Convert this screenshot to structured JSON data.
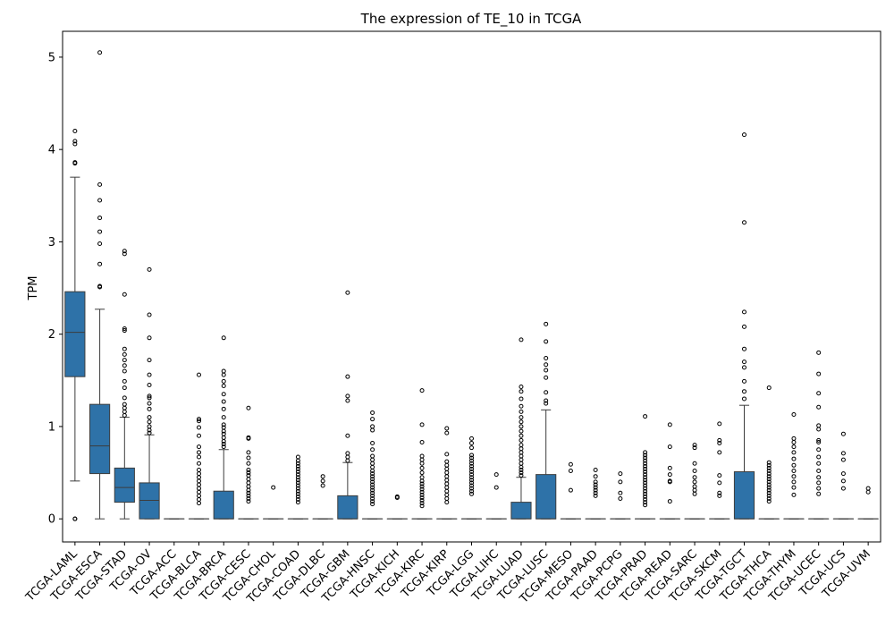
{
  "chart_data": {
    "type": "box",
    "title": "The expression of TE_10 in TCGA",
    "xlabel": "",
    "ylabel": "TPM",
    "ylim": [
      -0.25,
      5.28
    ],
    "yticks": [
      0,
      1,
      2,
      3,
      4,
      5
    ],
    "grid": false,
    "legend": "none",
    "box_color": "#2e72a8",
    "categories": [
      "TCGA-LAML",
      "TCGA-ESCA",
      "TCGA-STAD",
      "TCGA-OV",
      "TCGA-ACC",
      "TCGA-BLCA",
      "TCGA-BRCA",
      "TCGA-CESC",
      "TCGA-CHOL",
      "TCGA-COAD",
      "TCGA-DLBC",
      "TCGA-GBM",
      "TCGA-HNSC",
      "TCGA-KICH",
      "TCGA-KIRC",
      "TCGA-KIRP",
      "TCGA-LGG",
      "TCGA-LIHC",
      "TCGA-LUAD",
      "TCGA-LUSC",
      "TCGA-MESO",
      "TCGA-PAAD",
      "TCGA-PCPG",
      "TCGA-PRAD",
      "TCGA-READ",
      "TCGA-SARC",
      "TCGA-SKCM",
      "TCGA-TGCT",
      "TCGA-THCA",
      "TCGA-THYM",
      "TCGA-UCEC",
      "TCGA-UCS",
      "TCGA-UVM"
    ],
    "boxes": [
      {
        "q1": 1.54,
        "median": 2.02,
        "q3": 2.46,
        "whislo": 0.41,
        "whishi": 3.7,
        "fliers": [
          0,
          0,
          3.85,
          3.86,
          4.06,
          4.09,
          4.2
        ]
      },
      {
        "q1": 0.49,
        "median": 0.79,
        "q3": 1.24,
        "whislo": 0,
        "whishi": 2.27,
        "fliers": [
          2.51,
          2.52,
          2.76,
          2.98,
          3.11,
          3.26,
          3.45,
          3.62,
          5.05
        ]
      },
      {
        "q1": 0.18,
        "median": 0.34,
        "q3": 0.55,
        "whislo": 0,
        "whishi": 1.1,
        "fliers": [
          1.12,
          1.16,
          1.2,
          1.24,
          1.31,
          1.42,
          1.49,
          1.6,
          1.66,
          1.72,
          1.78,
          1.84,
          2.04,
          2.06,
          2.43,
          2.87,
          2.9
        ]
      },
      {
        "q1": 0,
        "median": 0.2,
        "q3": 0.39,
        "whislo": 0,
        "whishi": 0.91,
        "fliers": [
          0.93,
          0.96,
          1.0,
          1.05,
          1.1,
          1.19,
          1.25,
          1.31,
          1.33,
          1.45,
          1.56,
          1.72,
          1.96,
          2.21,
          2.7
        ]
      },
      {
        "q1": 0,
        "median": 0,
        "q3": 0,
        "whislo": 0,
        "whishi": 0,
        "fliers": []
      },
      {
        "q1": 0,
        "median": 0,
        "q3": 0,
        "whislo": 0,
        "whishi": 0,
        "fliers": [
          0.17,
          0.21,
          0.25,
          0.29,
          0.33,
          0.37,
          0.41,
          0.45,
          0.49,
          0.53,
          0.6,
          0.67,
          0.72,
          0.78,
          0.9,
          0.99,
          1.06,
          1.08,
          1.56
        ]
      },
      {
        "q1": 0,
        "median": 0,
        "q3": 0.3,
        "whislo": 0,
        "whishi": 0.75,
        "fliers": [
          0.78,
          0.81,
          0.84,
          0.88,
          0.92,
          0.95,
          0.99,
          1.02,
          1.1,
          1.19,
          1.27,
          1.35,
          1.44,
          1.49,
          1.56,
          1.6,
          1.96
        ]
      },
      {
        "q1": 0,
        "median": 0,
        "q3": 0,
        "whislo": 0,
        "whishi": 0,
        "fliers": [
          0.19,
          0.22,
          0.25,
          0.28,
          0.31,
          0.35,
          0.39,
          0.43,
          0.47,
          0.5,
          0.53,
          0.6,
          0.66,
          0.72,
          0.87,
          0.88,
          1.2
        ]
      },
      {
        "q1": 0,
        "median": 0,
        "q3": 0,
        "whislo": 0,
        "whishi": 0,
        "fliers": [
          0.34
        ]
      },
      {
        "q1": 0,
        "median": 0,
        "q3": 0,
        "whislo": 0,
        "whishi": 0,
        "fliers": [
          0.18,
          0.21,
          0.24,
          0.27,
          0.3,
          0.33,
          0.36,
          0.39,
          0.42,
          0.45,
          0.48,
          0.51,
          0.54,
          0.57,
          0.6,
          0.63,
          0.67
        ]
      },
      {
        "q1": 0,
        "median": 0,
        "q3": 0,
        "whislo": 0,
        "whishi": 0,
        "fliers": [
          0.36,
          0.41,
          0.46
        ]
      },
      {
        "q1": 0,
        "median": 0,
        "q3": 0.25,
        "whislo": 0,
        "whishi": 0.61,
        "fliers": [
          0.63,
          0.67,
          0.71,
          0.9,
          1.28,
          1.33,
          1.54,
          2.45
        ]
      },
      {
        "q1": 0,
        "median": 0,
        "q3": 0,
        "whislo": 0,
        "whishi": 0,
        "fliers": [
          0.16,
          0.19,
          0.22,
          0.25,
          0.28,
          0.31,
          0.34,
          0.37,
          0.4,
          0.43,
          0.46,
          0.49,
          0.52,
          0.56,
          0.6,
          0.64,
          0.68,
          0.75,
          0.82,
          0.96,
          1.0,
          1.08,
          1.15
        ]
      },
      {
        "q1": 0,
        "median": 0,
        "q3": 0,
        "whislo": 0,
        "whishi": 0,
        "fliers": [
          0.23,
          0.24
        ]
      },
      {
        "q1": 0,
        "median": 0,
        "q3": 0,
        "whislo": 0,
        "whishi": 0,
        "fliers": [
          0.14,
          0.17,
          0.2,
          0.23,
          0.26,
          0.29,
          0.32,
          0.35,
          0.38,
          0.41,
          0.45,
          0.5,
          0.55,
          0.6,
          0.64,
          0.68,
          0.83,
          1.02,
          1.39
        ]
      },
      {
        "q1": 0,
        "median": 0,
        "q3": 0,
        "whislo": 0,
        "whishi": 0,
        "fliers": [
          0.18,
          0.22,
          0.26,
          0.3,
          0.34,
          0.38,
          0.42,
          0.46,
          0.5,
          0.54,
          0.58,
          0.62,
          0.7,
          0.93,
          0.98
        ]
      },
      {
        "q1": 0,
        "median": 0,
        "q3": 0,
        "whislo": 0,
        "whishi": 0,
        "fliers": [
          0.27,
          0.3,
          0.33,
          0.36,
          0.39,
          0.42,
          0.45,
          0.48,
          0.51,
          0.54,
          0.57,
          0.6,
          0.63,
          0.66,
          0.69,
          0.77,
          0.82,
          0.87
        ]
      },
      {
        "q1": 0,
        "median": 0,
        "q3": 0,
        "whislo": 0,
        "whishi": 0,
        "fliers": [
          0.34,
          0.48
        ]
      },
      {
        "q1": 0,
        "median": 0,
        "q3": 0.18,
        "whislo": 0,
        "whishi": 0.45,
        "fliers": [
          0.47,
          0.5,
          0.53,
          0.56,
          0.6,
          0.64,
          0.68,
          0.72,
          0.76,
          0.8,
          0.85,
          0.9,
          0.95,
          1.0,
          1.05,
          1.1,
          1.16,
          1.22,
          1.3,
          1.38,
          1.43,
          1.94
        ]
      },
      {
        "q1": 0,
        "median": 0,
        "q3": 0.48,
        "whislo": 0,
        "whishi": 1.18,
        "fliers": [
          1.25,
          1.28,
          1.37,
          1.53,
          1.61,
          1.67,
          1.74,
          1.92,
          2.11
        ]
      },
      {
        "q1": 0,
        "median": 0,
        "q3": 0,
        "whislo": 0,
        "whishi": 0,
        "fliers": [
          0.31,
          0.52,
          0.59
        ]
      },
      {
        "q1": 0,
        "median": 0,
        "q3": 0,
        "whislo": 0,
        "whishi": 0,
        "fliers": [
          0.25,
          0.28,
          0.31,
          0.34,
          0.37,
          0.4,
          0.46,
          0.53
        ]
      },
      {
        "q1": 0,
        "median": 0,
        "q3": 0,
        "whislo": 0,
        "whishi": 0,
        "fliers": [
          0.22,
          0.28,
          0.4,
          0.49
        ]
      },
      {
        "q1": 0,
        "median": 0,
        "q3": 0,
        "whislo": 0,
        "whishi": 0,
        "fliers": [
          0.15,
          0.18,
          0.21,
          0.24,
          0.27,
          0.3,
          0.33,
          0.36,
          0.39,
          0.42,
          0.45,
          0.48,
          0.51,
          0.54,
          0.57,
          0.6,
          0.63,
          0.66,
          0.69,
          0.72,
          1.11
        ]
      },
      {
        "q1": 0,
        "median": 0,
        "q3": 0,
        "whislo": 0,
        "whishi": 0,
        "fliers": [
          0.19,
          0.4,
          0.41,
          0.48,
          0.55,
          0.78,
          1.02
        ]
      },
      {
        "q1": 0,
        "median": 0,
        "q3": 0,
        "whislo": 0,
        "whishi": 0,
        "fliers": [
          0.27,
          0.31,
          0.35,
          0.4,
          0.45,
          0.52,
          0.6,
          0.77,
          0.8
        ]
      },
      {
        "q1": 0,
        "median": 0,
        "q3": 0,
        "whislo": 0,
        "whishi": 0,
        "fliers": [
          0.25,
          0.28,
          0.39,
          0.47,
          0.72,
          0.82,
          0.85,
          1.03
        ]
      },
      {
        "q1": 0,
        "median": 0,
        "q3": 0.51,
        "whislo": 0,
        "whishi": 1.23,
        "fliers": [
          1.3,
          1.38,
          1.49,
          1.64,
          1.7,
          1.84,
          2.08,
          2.24,
          3.21,
          4.16
        ]
      },
      {
        "q1": 0,
        "median": 0,
        "q3": 0,
        "whislo": 0,
        "whishi": 0,
        "fliers": [
          0.19,
          0.22,
          0.25,
          0.28,
          0.31,
          0.34,
          0.37,
          0.4,
          0.43,
          0.46,
          0.49,
          0.52,
          0.55,
          0.58,
          0.61,
          1.42
        ]
      },
      {
        "q1": 0,
        "median": 0,
        "q3": 0,
        "whislo": 0,
        "whishi": 0,
        "fliers": [
          0.26,
          0.34,
          0.4,
          0.46,
          0.52,
          0.58,
          0.65,
          0.72,
          0.78,
          0.83,
          0.87,
          1.13
        ]
      },
      {
        "q1": 0,
        "median": 0,
        "q3": 0,
        "whislo": 0,
        "whishi": 0,
        "fliers": [
          0.27,
          0.33,
          0.39,
          0.45,
          0.52,
          0.6,
          0.67,
          0.75,
          0.83,
          0.85,
          0.97,
          1.01,
          1.21,
          1.36,
          1.57,
          1.8
        ]
      },
      {
        "q1": 0,
        "median": 0,
        "q3": 0,
        "whislo": 0,
        "whishi": 0,
        "fliers": [
          0.33,
          0.41,
          0.49,
          0.64,
          0.71,
          0.92
        ]
      },
      {
        "q1": 0,
        "median": 0,
        "q3": 0,
        "whislo": 0,
        "whishi": 0,
        "fliers": [
          0.29,
          0.33
        ]
      }
    ]
  }
}
